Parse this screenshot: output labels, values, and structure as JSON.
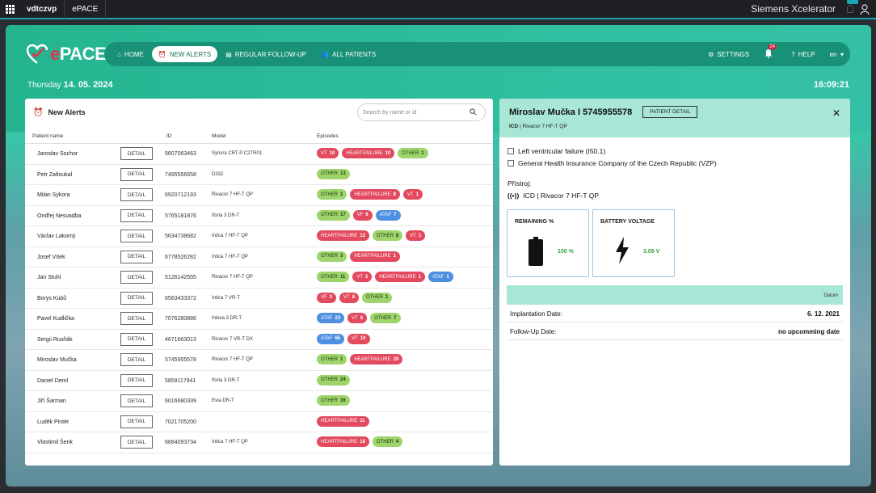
{
  "system_bar": {
    "tabs": [
      "vdtczvp",
      "ePACE"
    ],
    "brand": "Siemens Xcelerator"
  },
  "app": {
    "logo_text_e": "e",
    "logo_text_rest": "PACE"
  },
  "nav": {
    "items": [
      {
        "label": "HOME",
        "icon": "home-icon"
      },
      {
        "label": "NEW ALERTS",
        "icon": "alarm-icon",
        "active": true
      },
      {
        "label": "REGULAR FOLLOW-UP",
        "icon": "list-icon"
      },
      {
        "label": "ALL PATIENTS",
        "icon": "people-icon"
      }
    ],
    "settings_label": "SETTINGS",
    "notifications_count": "24",
    "help_label": "HELP",
    "language": "en"
  },
  "date": {
    "weekday": "Thursday",
    "date": "14. 05. 2024",
    "time": "16:09:21"
  },
  "alerts_panel": {
    "title": "New Alerts",
    "search_placeholder": "Search by name or id",
    "columns": [
      "Patient name",
      "ID",
      "Model",
      "Episodes"
    ],
    "detail_label": "DETAIL",
    "rows": [
      {
        "name": "Jaroslav Sochor",
        "id": "5607063463",
        "model": "Syncra CRT-P C2TR01",
        "episodes": [
          [
            "VT",
            "10",
            "red"
          ],
          [
            "HEARTFAILURE",
            "10",
            "red"
          ],
          [
            "OTHER",
            "1",
            "green"
          ]
        ]
      },
      {
        "name": "Petr Zatloukal",
        "id": "7495556658",
        "model": "D332",
        "episodes": [
          [
            "OTHER",
            "13",
            "green"
          ]
        ]
      },
      {
        "name": "Milan Sýkora",
        "id": "6920712193",
        "model": "Rivacor 7 HF-T QP",
        "episodes": [
          [
            "OTHER",
            "1",
            "green"
          ],
          [
            "HEARTFAILURE",
            "8",
            "red"
          ],
          [
            "VT",
            "1",
            "red"
          ]
        ]
      },
      {
        "name": "Ondřej Nesvadba",
        "id": "5765181876",
        "model": "Iforia 3 DR-T",
        "episodes": [
          [
            "OTHER",
            "17",
            "green"
          ],
          [
            "VF",
            "6",
            "red"
          ],
          [
            "ATAF",
            "7",
            "blue"
          ]
        ]
      },
      {
        "name": "Václav Lakomý",
        "id": "5634738682",
        "model": "Intica 7 HF-T QP",
        "episodes": [
          [
            "HEARTFAILURE",
            "12",
            "red"
          ],
          [
            "OTHER",
            "8",
            "green"
          ],
          [
            "VT",
            "1",
            "red"
          ]
        ]
      },
      {
        "name": "Josef Vítek",
        "id": "6778526282",
        "model": "Intica 7 HF-T QP",
        "episodes": [
          [
            "OTHER",
            "3",
            "green"
          ],
          [
            "HEARTFAILURE",
            "1",
            "red"
          ]
        ]
      },
      {
        "name": "Jan Stuhl",
        "id": "5126142555",
        "model": "Rivacor 7 HF-T QP",
        "episodes": [
          [
            "OTHER",
            "11",
            "green"
          ],
          [
            "VT",
            "2",
            "red"
          ],
          [
            "HEARTFAILURE",
            "1",
            "red"
          ],
          [
            "ATAF",
            "1",
            "blue"
          ]
        ]
      },
      {
        "name": "Borys Kubů",
        "id": "6563433372",
        "model": "Intica 7 VR-T",
        "episodes": [
          [
            "VF",
            "3",
            "red"
          ],
          [
            "VT",
            "8",
            "red"
          ],
          [
            "OTHER",
            "1",
            "green"
          ]
        ]
      },
      {
        "name": "Pavel Kudlička",
        "id": "7076280886",
        "model": "Inlexa 3 DR-T",
        "episodes": [
          [
            "ATAF",
            "23",
            "blue"
          ],
          [
            "VT",
            "6",
            "red"
          ],
          [
            "OTHER",
            "7",
            "green"
          ]
        ]
      },
      {
        "name": "Sergii Rusňák",
        "id": "4671663013",
        "model": "Rivacor 7 VR-T DX",
        "episodes": [
          [
            "ATAF",
            "65",
            "blue"
          ],
          [
            "VT",
            "10",
            "red"
          ]
        ]
      },
      {
        "name": "Miroslav Mučka",
        "id": "5745955578",
        "model": "Rivacor 7 HF-T QP",
        "episodes": [
          [
            "OTHER",
            "1",
            "green"
          ],
          [
            "HEARTFAILURE",
            "29",
            "red"
          ]
        ]
      },
      {
        "name": "Daniel Deml",
        "id": "5859117941",
        "model": "Iforia 3 DR-T",
        "episodes": [
          [
            "OTHER",
            "24",
            "green"
          ]
        ]
      },
      {
        "name": "Jiří Šarman",
        "id": "6016680339",
        "model": "Evia DR-T",
        "episodes": [
          [
            "OTHER",
            "16",
            "green"
          ]
        ]
      },
      {
        "name": "Luděk Pintér",
        "id": "7021705200",
        "model": "",
        "episodes": [
          [
            "HEARTFAILURE",
            "11",
            "red"
          ]
        ]
      },
      {
        "name": "Vlastimil Šenk",
        "id": "6884093734",
        "model": "Intica 7 HF-T QP",
        "episodes": [
          [
            "HEARTFAILURE",
            "18",
            "red"
          ],
          [
            "OTHER",
            "4",
            "green"
          ]
        ]
      }
    ]
  },
  "detail_panel": {
    "patient": "Miroslav Mučka I 5745955578",
    "patient_detail_label": "PATIENT DETAIL",
    "device_type": "ICD",
    "device_model": "Rivacor 7 HF-T QP",
    "diagnosis": "Left ventricular failure (I50.1)",
    "insurance": "General Health Insurance Company of the Czech Republic (VZP)",
    "device_section_label": "Přístroj:",
    "remaining_title": "REMAINING %",
    "remaining_value": "100 %",
    "battery_title": "BATTERY VOLTAGE",
    "battery_value": "3.09 V",
    "datum_header": "Datum",
    "implantation_label": "Implantation Date:",
    "implantation_value": "6. 12. 2021",
    "followup_label": "Follow-Up Date:",
    "followup_value": "no upcomming date"
  },
  "colors": {
    "accent": "#2cb89a",
    "red_chip": "#e34a5e",
    "green_chip": "#9ed46c",
    "blue_chip": "#4d8fe0"
  }
}
